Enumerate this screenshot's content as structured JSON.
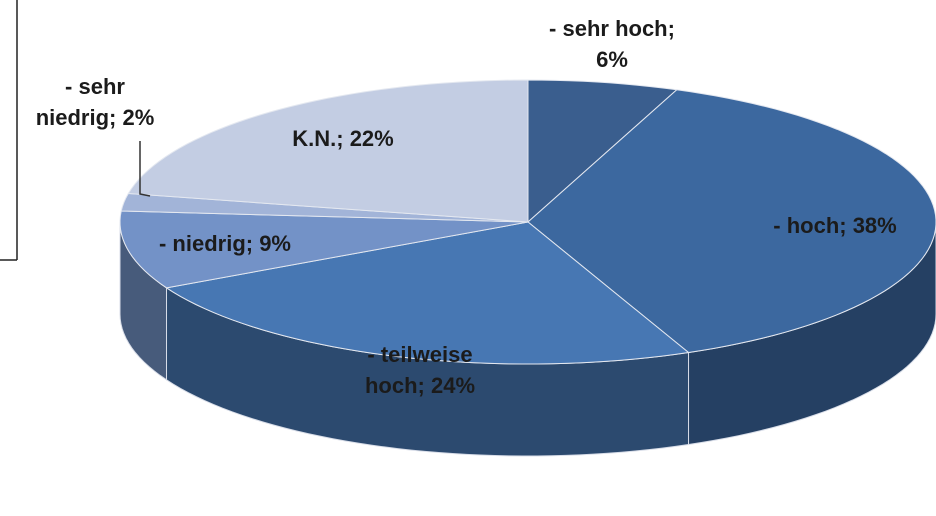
{
  "chart_data": {
    "type": "pie3d",
    "labels": [
      "- sehr hoch;\n6%",
      "- hoch; 38%",
      "- teilweise\nhoch; 24%",
      "- niedrig; 9%",
      "- sehr\nniedrig; 2%",
      "K.N.; 22%"
    ],
    "values": [
      6,
      38,
      24,
      9,
      2,
      22
    ],
    "colors": [
      "#3a5e8e",
      "#3c689f",
      "#4777b3",
      "#7392c7",
      "#a2b4d8",
      "#c3cde3"
    ]
  }
}
